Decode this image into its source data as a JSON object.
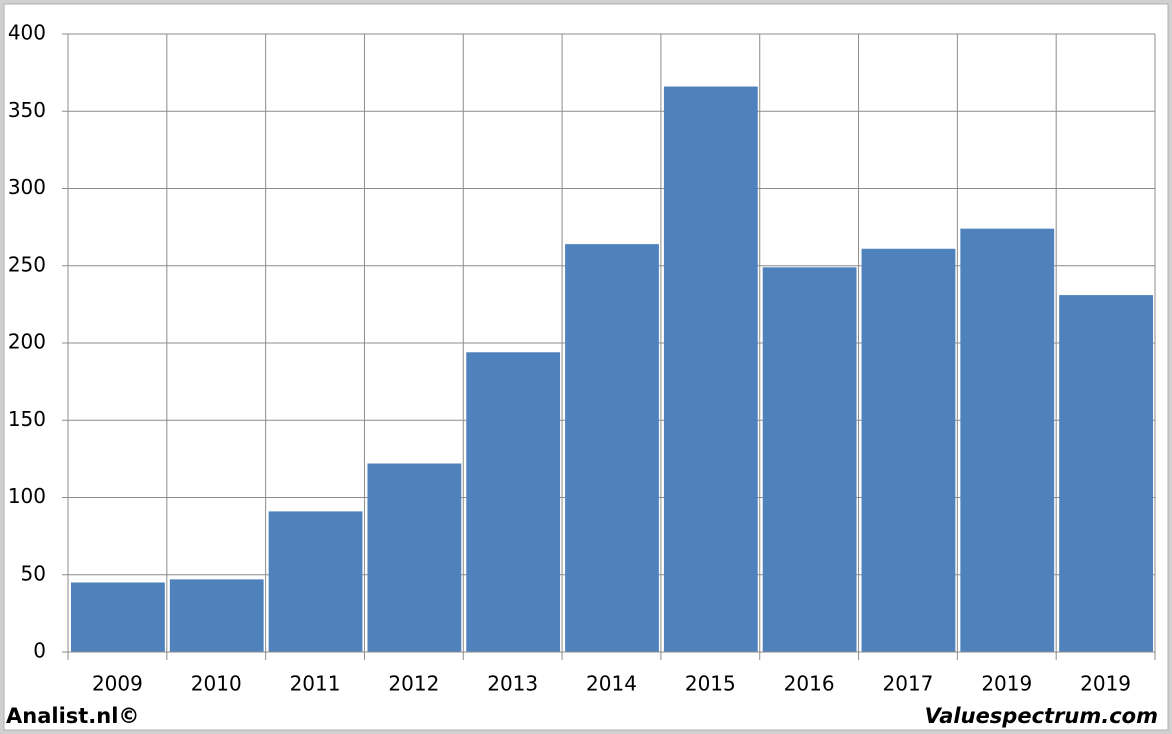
{
  "chart_data": {
    "type": "bar",
    "categories": [
      "2009",
      "2010",
      "2011",
      "2012",
      "2013",
      "2014",
      "2015",
      "2016",
      "2017",
      "2019",
      "2019"
    ],
    "values": [
      45,
      47,
      91,
      122,
      194,
      264,
      366,
      249,
      261,
      274,
      231
    ],
    "color": "#4f81bd",
    "ylim": [
      0,
      400
    ],
    "yticks": [
      0,
      50,
      100,
      150,
      200,
      250,
      300,
      350,
      400
    ],
    "grid": true,
    "annotations": [
      "Analist.nl©",
      "Valuespectrum.com"
    ]
  }
}
